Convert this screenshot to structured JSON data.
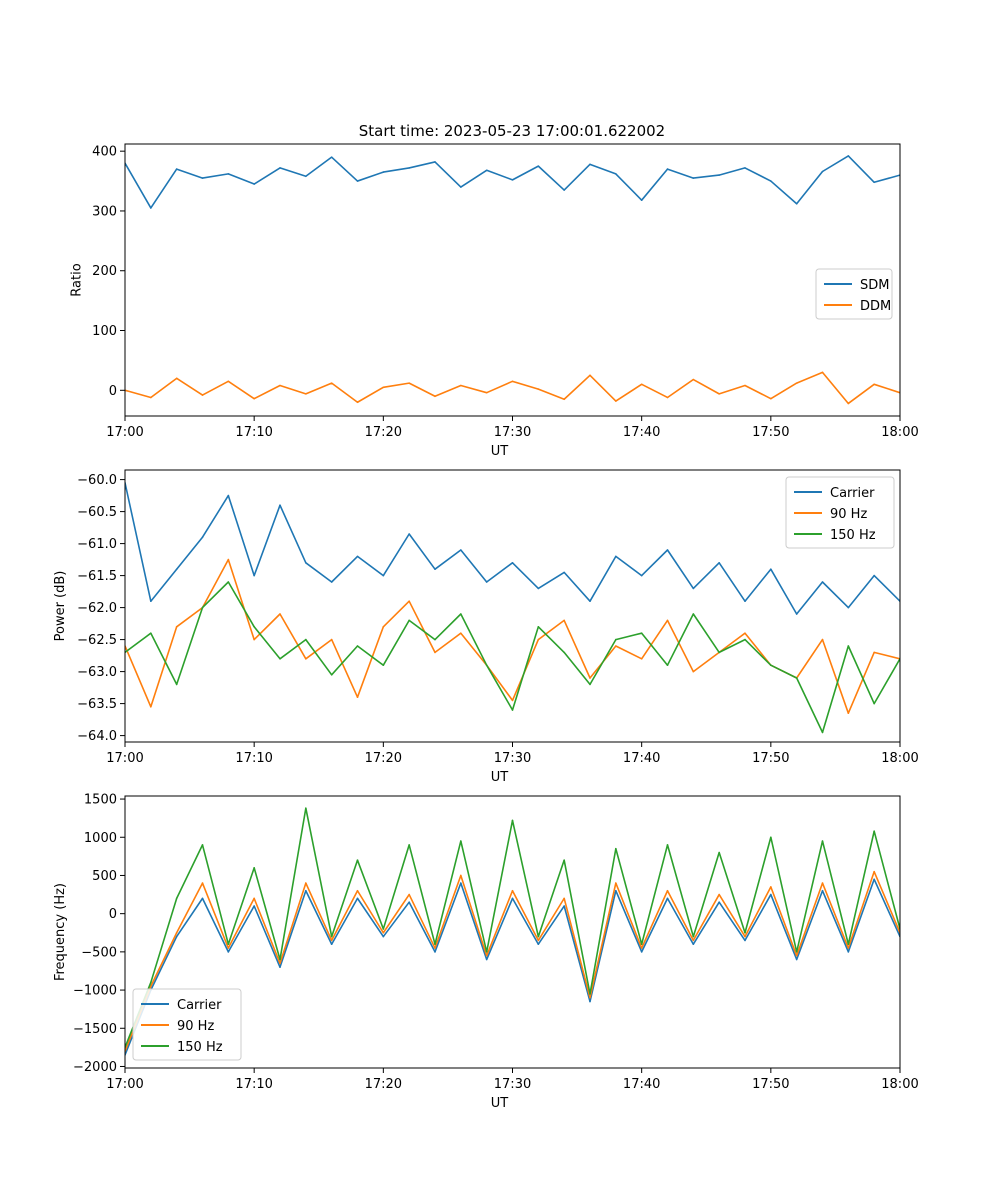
{
  "figure": {
    "title": "Start time: 2023-05-23 17:00:01.622002"
  },
  "chart_data": [
    {
      "type": "line",
      "xlabel": "UT",
      "ylabel": "Ratio",
      "xlim": [
        "17:00",
        "18:00"
      ],
      "ylim": [
        -43,
        412
      ],
      "x_ticks": [
        "17:00",
        "17:10",
        "17:20",
        "17:30",
        "17:40",
        "17:50",
        "18:00"
      ],
      "y_ticks": [
        0,
        100,
        200,
        300,
        400
      ],
      "legend": {
        "position": "center-right",
        "entries": [
          "SDM",
          "DDM"
        ]
      },
      "grid": false,
      "x": [
        "17:00",
        "17:02",
        "17:04",
        "17:06",
        "17:08",
        "17:10",
        "17:12",
        "17:14",
        "17:16",
        "17:18",
        "17:20",
        "17:22",
        "17:24",
        "17:26",
        "17:28",
        "17:30",
        "17:32",
        "17:34",
        "17:36",
        "17:38",
        "17:40",
        "17:42",
        "17:44",
        "17:46",
        "17:48",
        "17:50",
        "17:52",
        "17:54",
        "17:56",
        "17:58",
        "18:00"
      ],
      "series": [
        {
          "name": "SDM",
          "color": "#1f77b4",
          "values": [
            380,
            305,
            370,
            355,
            362,
            345,
            372,
            358,
            390,
            350,
            365,
            372,
            382,
            340,
            368,
            352,
            375,
            335,
            378,
            362,
            318,
            370,
            355,
            360,
            372,
            350,
            312,
            366,
            392,
            348,
            360
          ]
        },
        {
          "name": "DDM",
          "color": "#ff7f0e",
          "values": [
            0,
            -12,
            20,
            -8,
            15,
            -14,
            8,
            -6,
            12,
            -20,
            5,
            12,
            -10,
            8,
            -4,
            15,
            2,
            -15,
            25,
            -18,
            10,
            -12,
            18,
            -6,
            8,
            -14,
            12,
            30,
            -22,
            10,
            -4
          ]
        }
      ]
    },
    {
      "type": "line",
      "xlabel": "UT",
      "ylabel": "Power (dB)",
      "xlim": [
        "17:00",
        "18:00"
      ],
      "ylim": [
        -64.1,
        -59.85
      ],
      "x_ticks": [
        "17:00",
        "17:10",
        "17:20",
        "17:30",
        "17:40",
        "17:50",
        "18:00"
      ],
      "y_ticks": [
        -60.0,
        -60.5,
        -61.0,
        -61.5,
        -62.0,
        -62.5,
        -63.0,
        -63.5,
        -64.0
      ],
      "legend": {
        "position": "top-right",
        "entries": [
          "Carrier",
          "90 Hz",
          "150 Hz"
        ]
      },
      "grid": false,
      "x": [
        "17:00",
        "17:02",
        "17:04",
        "17:06",
        "17:08",
        "17:10",
        "17:12",
        "17:14",
        "17:16",
        "17:18",
        "17:20",
        "17:22",
        "17:24",
        "17:26",
        "17:28",
        "17:30",
        "17:32",
        "17:34",
        "17:36",
        "17:38",
        "17:40",
        "17:42",
        "17:44",
        "17:46",
        "17:48",
        "17:50",
        "17:52",
        "17:54",
        "17:56",
        "17:58",
        "18:00"
      ],
      "series": [
        {
          "name": "Carrier",
          "color": "#1f77b4",
          "values": [
            -60.05,
            -61.9,
            -61.4,
            -60.9,
            -60.25,
            -61.5,
            -60.4,
            -61.3,
            -61.6,
            -61.2,
            -61.5,
            -60.85,
            -61.4,
            -61.1,
            -61.6,
            -61.3,
            -61.7,
            -61.45,
            -61.9,
            -61.2,
            -61.5,
            -61.1,
            -61.7,
            -61.3,
            -61.9,
            -61.4,
            -62.1,
            -61.6,
            -62.0,
            -61.5,
            -61.9
          ]
        },
        {
          "name": "90 Hz",
          "color": "#ff7f0e",
          "values": [
            -62.6,
            -63.55,
            -62.3,
            -62.0,
            -61.25,
            -62.5,
            -62.1,
            -62.8,
            -62.5,
            -63.4,
            -62.3,
            -61.9,
            -62.7,
            -62.4,
            -62.9,
            -63.45,
            -62.5,
            -62.2,
            -63.1,
            -62.6,
            -62.8,
            -62.2,
            -63.0,
            -62.7,
            -62.4,
            -62.9,
            -63.1,
            -62.5,
            -63.65,
            -62.7,
            -62.8
          ]
        },
        {
          "name": "150 Hz",
          "color": "#2ca02c",
          "values": [
            -62.7,
            -62.4,
            -63.2,
            -62.0,
            -61.6,
            -62.3,
            -62.8,
            -62.5,
            -63.05,
            -62.6,
            -62.9,
            -62.2,
            -62.5,
            -62.1,
            -62.9,
            -63.6,
            -62.3,
            -62.7,
            -63.2,
            -62.5,
            -62.4,
            -62.9,
            -62.1,
            -62.7,
            -62.5,
            -62.9,
            -63.1,
            -63.95,
            -62.6,
            -63.5,
            -62.8
          ]
        }
      ]
    },
    {
      "type": "line",
      "xlabel": "UT",
      "ylabel": "Frequency (Hz)",
      "xlim": [
        "17:00",
        "18:00"
      ],
      "ylim": [
        -2020,
        1540
      ],
      "x_ticks": [
        "17:00",
        "17:10",
        "17:20",
        "17:30",
        "17:40",
        "17:50",
        "18:00"
      ],
      "y_ticks": [
        1500,
        1000,
        500,
        0,
        -500,
        -1000,
        -1500,
        -2000
      ],
      "legend": {
        "position": "lower-left",
        "entries": [
          "Carrier",
          "90 Hz",
          "150 Hz"
        ]
      },
      "grid": false,
      "x": [
        "17:00",
        "17:02",
        "17:04",
        "17:06",
        "17:08",
        "17:10",
        "17:12",
        "17:14",
        "17:16",
        "17:18",
        "17:20",
        "17:22",
        "17:24",
        "17:26",
        "17:28",
        "17:30",
        "17:32",
        "17:34",
        "17:36",
        "17:38",
        "17:40",
        "17:42",
        "17:44",
        "17:46",
        "17:48",
        "17:50",
        "17:52",
        "17:54",
        "17:56",
        "17:58",
        "18:00"
      ],
      "series": [
        {
          "name": "Carrier",
          "color": "#1f77b4",
          "values": [
            -1850,
            -1000,
            -300,
            200,
            -500,
            100,
            -700,
            300,
            -400,
            200,
            -300,
            150,
            -500,
            400,
            -600,
            200,
            -400,
            100,
            -1150,
            300,
            -500,
            200,
            -400,
            150,
            -350,
            250,
            -600,
            300,
            -500,
            450,
            -300
          ]
        },
        {
          "name": "90 Hz",
          "color": "#ff7f0e",
          "values": [
            -1800,
            -950,
            -250,
            400,
            -450,
            200,
            -650,
            400,
            -350,
            300,
            -250,
            250,
            -450,
            500,
            -550,
            300,
            -350,
            200,
            -1100,
            400,
            -450,
            300,
            -350,
            250,
            -300,
            350,
            -550,
            400,
            -450,
            550,
            -250
          ]
        },
        {
          "name": "150 Hz",
          "color": "#2ca02c",
          "values": [
            -1750,
            -900,
            200,
            900,
            -400,
            600,
            -600,
            1380,
            -300,
            700,
            -200,
            900,
            -400,
            950,
            -500,
            1220,
            -300,
            700,
            -1050,
            850,
            -400,
            900,
            -300,
            800,
            -250,
            1000,
            -500,
            950,
            -400,
            1080,
            -200
          ]
        }
      ]
    }
  ]
}
